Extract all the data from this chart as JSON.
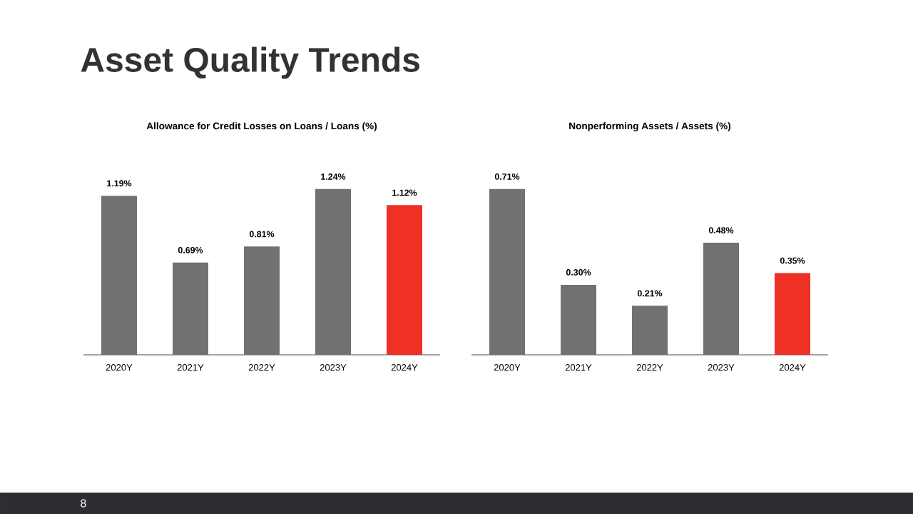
{
  "chart_data": [
    {
      "type": "other",
      "title": "Asset Quality Trends",
      "annotations": [
        "8"
      ]
    },
    {
      "type": "bar",
      "title": "Allowance for Credit Losses on Loans / Loans (%)",
      "categories": [
        "2020Y",
        "2021Y",
        "2022Y",
        "2023Y",
        "2024Y"
      ],
      "values": [
        1.19,
        0.69,
        0.81,
        1.24,
        1.12
      ],
      "colors": [
        "#717073",
        "#717073",
        "#717073",
        "#717073",
        "#ee3124"
      ],
      "value_labels": [
        "1.19%",
        "0.69%",
        "0.81%",
        "1.24%",
        "1.12%"
      ]
    },
    {
      "type": "bar",
      "title": "Nonperforming Assets / Assets (%)",
      "categories": [
        "2020Y",
        "2021Y",
        "2022Y",
        "2023Y",
        "2024Y"
      ],
      "values": [
        0.71,
        0.3,
        0.21,
        0.48,
        0.35
      ],
      "colors": [
        "#717073",
        "#717073",
        "#717073",
        "#717073",
        "#ee3124"
      ],
      "value_labels": [
        "0.71%",
        "0.30%",
        "0.21%",
        "0.48%",
        "0.35%"
      ]
    }
  ]
}
